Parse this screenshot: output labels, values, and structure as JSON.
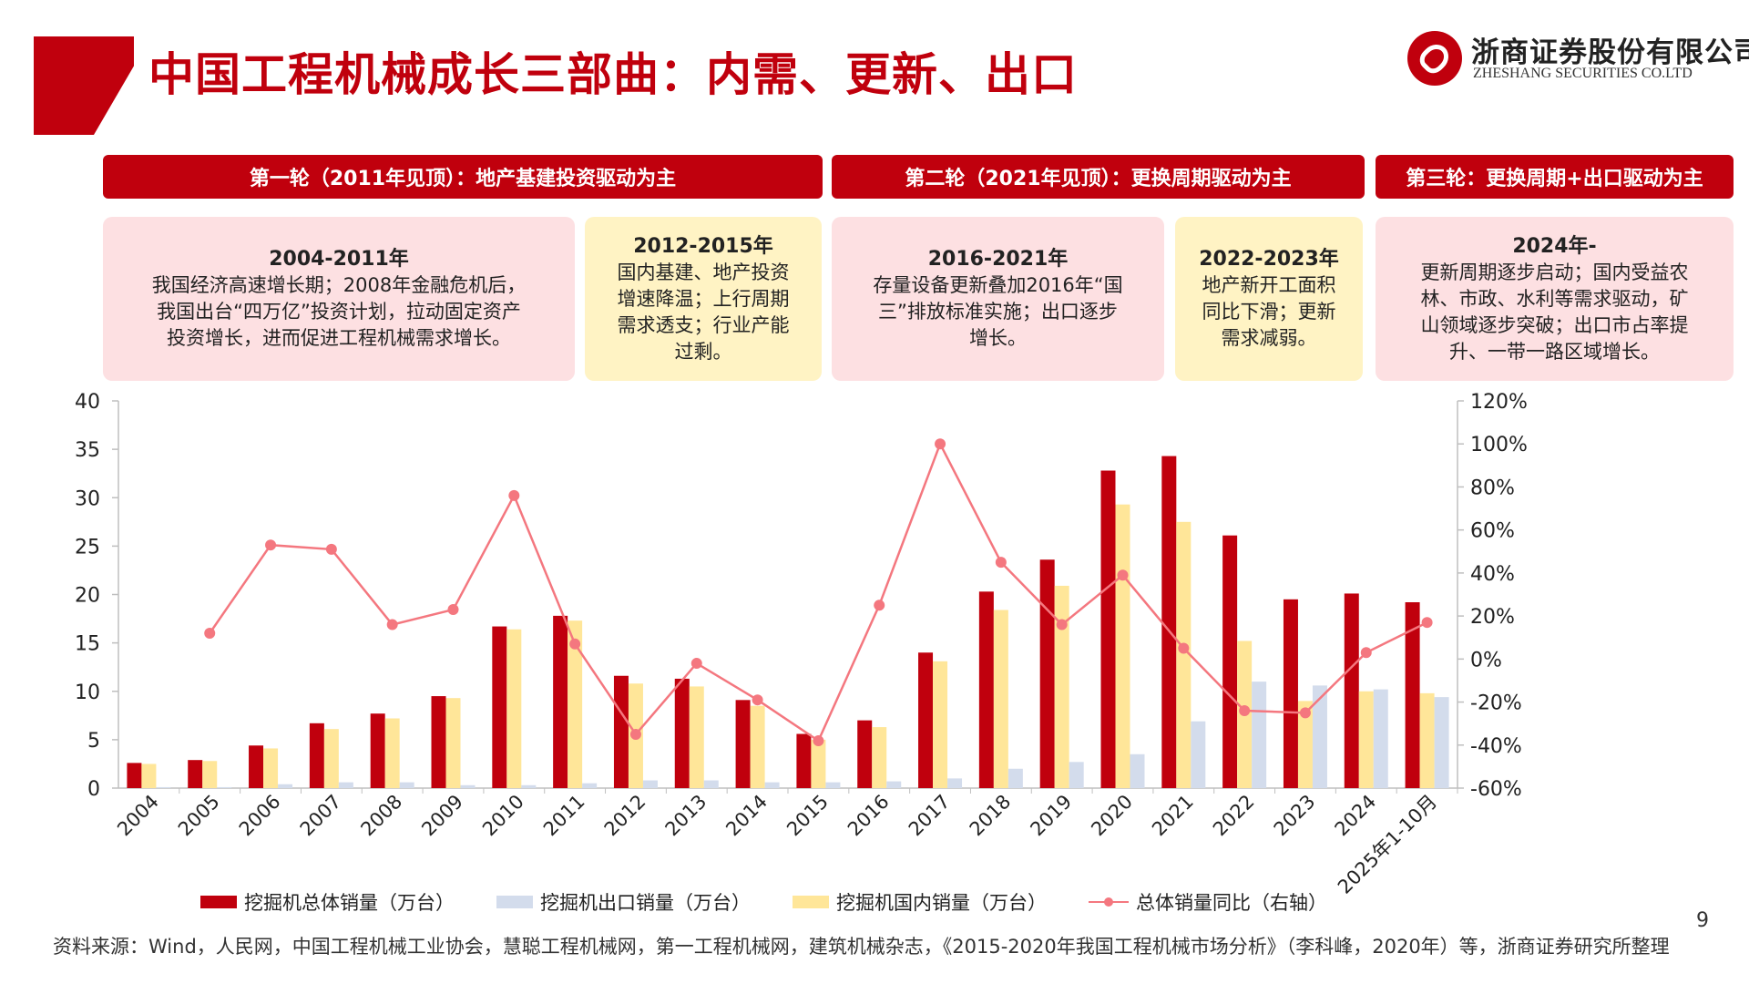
{
  "header": {
    "title": "中国工程机械成长三部曲：内需、更新、出口",
    "logo_cn": "浙商证券股份有限公司",
    "logo_en": "ZHESHANG SECURITIES CO.LTD"
  },
  "phases": [
    {
      "label": "第一轮（2011年见顶）：地产基建投资驱动为主"
    },
    {
      "label": "第二轮（2021年见顶）：更换周期驱动为主"
    },
    {
      "label": "第三轮：更换周期+出口驱动为主"
    }
  ],
  "boxes": [
    {
      "heading": "2004-2011年",
      "lines": [
        "我国经济高速增长期；2008年金融危机后，",
        "我国出台“四万亿”投资计划，拉动固定资产",
        "投资增长，进而促进工程机械需求增长。"
      ]
    },
    {
      "heading": "2012-2015年",
      "lines": [
        "国内基建、地产投资",
        "增速降温；上行周期",
        "需求透支；行业产能",
        "过剩。"
      ]
    },
    {
      "heading": "2016-2021年",
      "lines": [
        "存量设备更新叠加2016年“国",
        "三”排放标准实施；出口逐步",
        "增长。"
      ]
    },
    {
      "heading": "2022-2023年",
      "lines": [
        "地产新开工面积",
        "同比下滑；更新",
        "需求减弱。"
      ]
    },
    {
      "heading": "2024年-",
      "lines": [
        "更新周期逐步启动；国内受益农",
        "林、市政、水利等需求驱动，矿",
        "山领域逐步突破；出口市占率提",
        "升、一带一路区域增长。"
      ]
    }
  ],
  "chart_data": {
    "type": "bar",
    "categories": [
      "2004",
      "2005",
      "2006",
      "2007",
      "2008",
      "2009",
      "2010",
      "2011",
      "2012",
      "2013",
      "2014",
      "2015",
      "2016",
      "2017",
      "2018",
      "2019",
      "2020",
      "2021",
      "2022",
      "2023",
      "2024",
      "2025年1-10月"
    ],
    "series": [
      {
        "name": "挖掘机总体销量（万台）",
        "type": "bar",
        "axis": "left",
        "color": "#c0000d",
        "values": [
          2.6,
          2.9,
          4.4,
          6.7,
          7.7,
          9.5,
          16.7,
          17.8,
          11.6,
          11.3,
          9.1,
          5.6,
          7.0,
          14.0,
          20.3,
          23.6,
          32.8,
          34.3,
          26.1,
          19.5,
          20.1,
          19.2
        ]
      },
      {
        "name": "挖掘机出口销量（万台）",
        "type": "bar",
        "axis": "left",
        "color": "#d3dcec",
        "values": [
          0.1,
          0.1,
          0.4,
          0.6,
          0.6,
          0.3,
          0.3,
          0.5,
          0.8,
          0.8,
          0.6,
          0.6,
          0.7,
          1.0,
          2.0,
          2.7,
          3.5,
          6.9,
          11.0,
          10.6,
          10.2,
          9.4
        ]
      },
      {
        "name": "挖掘机国内销量（万台）",
        "type": "bar",
        "axis": "left",
        "color": "#ffe699",
        "values": [
          2.5,
          2.8,
          4.1,
          6.1,
          7.2,
          9.3,
          16.4,
          17.3,
          10.8,
          10.5,
          8.5,
          5.0,
          6.3,
          13.1,
          18.4,
          20.9,
          29.3,
          27.5,
          15.2,
          9.0,
          10.0,
          9.8
        ]
      },
      {
        "name": "总体销量同比（右轴）",
        "type": "line",
        "axis": "right",
        "color": "#f4777f",
        "values": [
          null,
          12,
          53,
          51,
          16,
          23,
          76,
          7,
          -35,
          -2,
          -19,
          -38,
          25,
          100,
          45,
          16,
          39,
          5,
          -24,
          -25,
          3,
          17
        ]
      }
    ],
    "left_axis": {
      "min": 0,
      "max": 40,
      "ticks": [
        "0",
        "5",
        "10",
        "15",
        "20",
        "25",
        "30",
        "35",
        "40"
      ]
    },
    "right_axis": {
      "min": -60,
      "max": 120,
      "ticks": [
        "-60%",
        "-40%",
        "-20%",
        "0%",
        "20%",
        "40%",
        "60%",
        "80%",
        "100%",
        "120%"
      ]
    },
    "legend_position": "bottom",
    "grid": false
  },
  "footer": {
    "source": "资料来源：Wind，人民网，中国工程机械工业协会，慧聪工程机械网，第一工程机械网，建筑机械杂志，《2015-2020年我国工程机械市场分析》（李科峰，2020年）等，浙商证券研究所整理",
    "page": "9"
  }
}
